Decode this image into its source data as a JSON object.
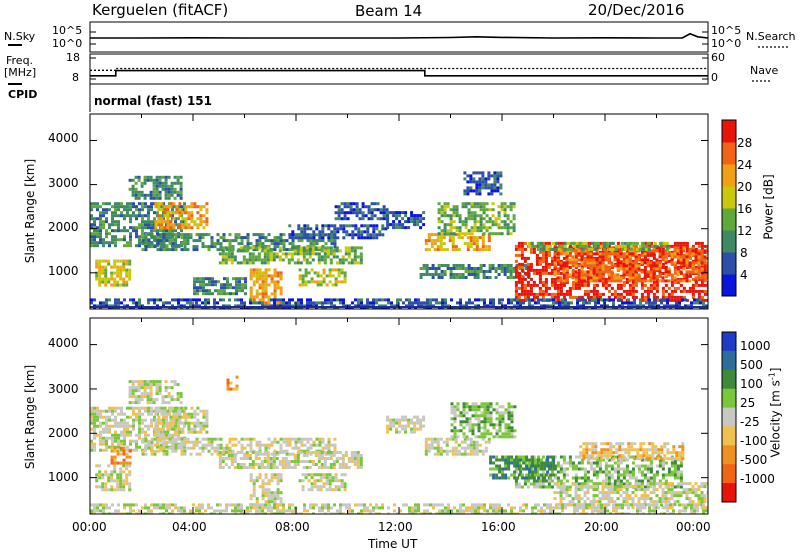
{
  "header": {
    "station": "Kerguelen (fitACF)",
    "beam": "Beam 14",
    "date": "20/Dec/2016"
  },
  "left_labels": {
    "nsky": "N.Sky",
    "freq": "Freq.",
    "freq_unit": "[MHz]",
    "cpid": "CPID"
  },
  "right_labels": {
    "nsearch": "N.Search",
    "nave": "Nave"
  },
  "cpid_text": "normal (fast) 151",
  "chart_data": [
    {
      "type": "line",
      "title": "N.Sky / N.Search",
      "yticks_left": [
        "10^5",
        "10^0"
      ],
      "yticks_right": [
        "10^5",
        "10^0"
      ],
      "x": [
        0,
        2,
        4,
        6,
        8,
        10,
        12,
        14,
        15,
        16,
        18,
        20,
        22,
        23,
        23.3,
        23.6,
        24
      ],
      "series": [
        {
          "name": "N.Sky",
          "values": [
            0.5,
            0.5,
            0.52,
            0.5,
            0.5,
            0.5,
            0.5,
            0.54,
            0.6,
            0.55,
            0.5,
            0.52,
            0.5,
            0.5,
            0.85,
            0.6,
            0.5
          ]
        }
      ]
    },
    {
      "type": "line",
      "title": "Freq / Nave",
      "yticks_left": [
        "18",
        "8"
      ],
      "yticks_right": [
        "60",
        "0"
      ],
      "series": [
        {
          "name": "Freq.",
          "points": [
            [
              0,
              9.5
            ],
            [
              1,
              9.5
            ],
            [
              1,
              12
            ],
            [
              13,
              12
            ],
            [
              13,
              9.5
            ],
            [
              24,
              9.5
            ]
          ]
        },
        {
          "name": "Nave",
          "points": [
            [
              0,
              25
            ],
            [
              1,
              25
            ],
            [
              1,
              30
            ],
            [
              24,
              30
            ]
          ]
        }
      ]
    },
    {
      "type": "heatmap",
      "ylabel": "Slant Range [km]",
      "yticks": [
        "1000",
        "2000",
        "3000",
        "4000"
      ],
      "ylim": [
        180,
        4600
      ],
      "colorbar_label": "Power [dB]",
      "colorbar_ticks": [
        "4",
        "8",
        "12",
        "16",
        "20",
        "24",
        "28"
      ],
      "colorbar_colors": [
        "#0a14dc",
        "#2c4fa8",
        "#3f8a62",
        "#5fa83c",
        "#c9c80a",
        "#f0a014",
        "#f06414",
        "#e8140a"
      ],
      "regions": [
        {
          "t0": 0.0,
          "t1": 3.7,
          "r0": 1600,
          "r1": 2600,
          "level": 2
        },
        {
          "t0": 1.5,
          "t1": 3.5,
          "r0": 2700,
          "r1": 3200,
          "level": 2
        },
        {
          "t0": 2.5,
          "t1": 4.5,
          "r0": 2000,
          "r1": 2600,
          "level": 5
        },
        {
          "t0": 2.0,
          "t1": 9.5,
          "r0": 1500,
          "r1": 1900,
          "level": 2
        },
        {
          "t0": 5.0,
          "t1": 10.5,
          "r0": 1200,
          "r1": 1600,
          "level": 3
        },
        {
          "t0": 0.2,
          "t1": 1.5,
          "r0": 700,
          "r1": 1300,
          "level": 4
        },
        {
          "t0": 4.0,
          "t1": 6.0,
          "r0": 500,
          "r1": 900,
          "level": 2
        },
        {
          "t0": 6.2,
          "t1": 7.4,
          "r0": 300,
          "r1": 1100,
          "level": 5
        },
        {
          "t0": 8.1,
          "t1": 9.9,
          "r0": 750,
          "r1": 1100,
          "level": 4
        },
        {
          "t0": 7.7,
          "t1": 11.5,
          "r0": 1800,
          "r1": 2100,
          "level": 1
        },
        {
          "t0": 9.5,
          "t1": 11.5,
          "r0": 2250,
          "r1": 2600,
          "level": 1
        },
        {
          "t0": 11.5,
          "t1": 13.0,
          "r0": 2000,
          "r1": 2400,
          "level": 1
        },
        {
          "t0": 13.0,
          "t1": 15.5,
          "r0": 1500,
          "r1": 1900,
          "level": 5
        },
        {
          "t0": 13.5,
          "t1": 16.5,
          "r0": 1900,
          "r1": 2600,
          "level": 3
        },
        {
          "t0": 14.5,
          "t1": 16.0,
          "r0": 2800,
          "r1": 3300,
          "level": 1
        },
        {
          "t0": 12.8,
          "t1": 17.0,
          "r0": 900,
          "r1": 1200,
          "level": 2
        },
        {
          "t0": 16.5,
          "t1": 24.0,
          "r0": 400,
          "r1": 1700,
          "level": 7
        },
        {
          "t0": 18.0,
          "t1": 24.0,
          "r0": 800,
          "r1": 1600,
          "level": 6
        },
        {
          "t0": 17.0,
          "t1": 22.5,
          "r0": 1500,
          "r1": 1700,
          "level": 3
        },
        {
          "t0": 0.0,
          "t1": 24.0,
          "r0": 180,
          "r1": 420,
          "level": 1
        }
      ]
    },
    {
      "type": "heatmap",
      "xlabel": "Time UT",
      "ylabel": "Slant Range [km]",
      "yticks": [
        "1000",
        "2000",
        "3000",
        "4000"
      ],
      "xticks": [
        "00:00",
        "04:00",
        "08:00",
        "12:00",
        "16:00",
        "20:00",
        "00:00"
      ],
      "ylim": [
        180,
        4600
      ],
      "colorbar_label": "Velocity [m s",
      "colorbar_label_sup": "-1",
      "colorbar_label_end": "]",
      "colorbar_ticks": [
        "1000",
        "500",
        "100",
        "25",
        "-25",
        "-100",
        "-500",
        "-1000"
      ],
      "colorbar_colors": [
        "#1e3cc8",
        "#2c6e9a",
        "#3f8a3a",
        "#7ac83a",
        "#c8c8c0",
        "#f0c050",
        "#f09020",
        "#f06414",
        "#e8140a"
      ],
      "regions": [
        {
          "t0": 0.0,
          "t1": 3.7,
          "r0": 1600,
          "r1": 2600,
          "level": 4
        },
        {
          "t0": 1.5,
          "t1": 3.5,
          "r0": 2700,
          "r1": 3200,
          "level": 4
        },
        {
          "t0": 2.5,
          "t1": 4.5,
          "r0": 2000,
          "r1": 2600,
          "level": 4
        },
        {
          "t0": 2.0,
          "t1": 9.5,
          "r0": 1500,
          "r1": 1900,
          "level": 4
        },
        {
          "t0": 5.0,
          "t1": 10.5,
          "r0": 1200,
          "r1": 1600,
          "level": 4
        },
        {
          "t0": 0.2,
          "t1": 1.5,
          "r0": 700,
          "r1": 1300,
          "level": 4
        },
        {
          "t0": 6.2,
          "t1": 7.4,
          "r0": 300,
          "r1": 1100,
          "level": 4
        },
        {
          "t0": 8.1,
          "t1": 9.9,
          "r0": 750,
          "r1": 1100,
          "level": 4
        },
        {
          "t0": 11.5,
          "t1": 13.0,
          "r0": 2000,
          "r1": 2400,
          "level": 4
        },
        {
          "t0": 13.0,
          "t1": 15.5,
          "r0": 1500,
          "r1": 1900,
          "level": 4
        },
        {
          "t0": 14.0,
          "t1": 16.5,
          "r0": 1900,
          "r1": 2700,
          "level": 3
        },
        {
          "t0": 16.5,
          "t1": 23.0,
          "r0": 800,
          "r1": 1500,
          "level": 3
        },
        {
          "t0": 15.5,
          "t1": 18.0,
          "r0": 1000,
          "r1": 1500,
          "level": 2
        },
        {
          "t0": 19.0,
          "t1": 23.0,
          "r0": 1400,
          "r1": 1800,
          "level": 5
        },
        {
          "t0": 18.0,
          "t1": 24.0,
          "r0": 300,
          "r1": 900,
          "level": 4
        },
        {
          "t0": 0.0,
          "t1": 24.0,
          "r0": 180,
          "r1": 420,
          "level": 4
        },
        {
          "t0": 0.8,
          "t1": 1.6,
          "r0": 1300,
          "r1": 1700,
          "level": 6
        },
        {
          "t0": 5.3,
          "t1": 5.7,
          "r0": 3000,
          "r1": 3300,
          "level": 6
        }
      ]
    }
  ]
}
